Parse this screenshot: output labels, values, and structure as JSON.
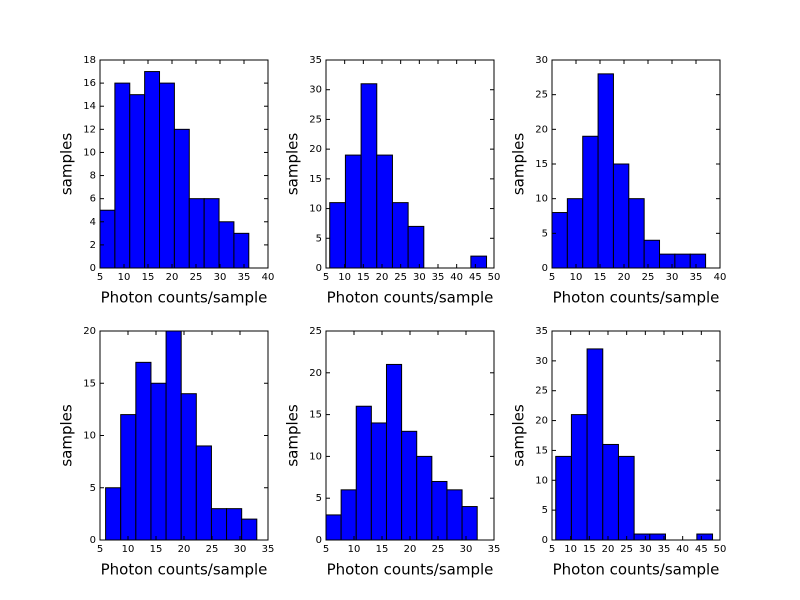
{
  "chart_data": [
    {
      "type": "histogram",
      "xlabel": "Photon counts/sample",
      "ylabel": "samples",
      "color": "#0000ff",
      "bins": [
        5,
        8.1,
        11.2,
        14.3,
        17.4,
        20.5,
        23.6,
        26.7,
        29.8,
        32.9,
        36
      ],
      "values": [
        5,
        16,
        15,
        17,
        16,
        12,
        6,
        6,
        4,
        3
      ],
      "xlim": [
        5,
        40
      ],
      "ylim": [
        0,
        18
      ],
      "xticks": [
        5,
        10,
        15,
        20,
        25,
        30,
        35,
        40
      ],
      "yticks": [
        0,
        2,
        4,
        6,
        8,
        10,
        12,
        14,
        16,
        18
      ]
    },
    {
      "type": "histogram",
      "xlabel": "Photon counts/sample",
      "ylabel": "samples",
      "color": "#0000ff",
      "bins": [
        6,
        10.2,
        14.4,
        18.6,
        22.8,
        27,
        31.2,
        35.4,
        39.6,
        43.8,
        48
      ],
      "values": [
        11,
        19,
        31,
        19,
        11,
        7,
        0,
        0,
        0,
        2
      ],
      "xlim": [
        5,
        50
      ],
      "ylim": [
        0,
        35
      ],
      "xticks": [
        5,
        10,
        15,
        20,
        25,
        30,
        35,
        40,
        45,
        50
      ],
      "yticks": [
        0,
        5,
        10,
        15,
        20,
        25,
        30,
        35
      ]
    },
    {
      "type": "histogram",
      "xlabel": "Photon counts/sample",
      "ylabel": "samples",
      "color": "#0000ff",
      "bins": [
        5,
        8.2,
        11.4,
        14.6,
        17.8,
        21,
        24.2,
        27.4,
        30.6,
        33.8,
        37
      ],
      "values": [
        8,
        10,
        19,
        28,
        15,
        10,
        4,
        2,
        2,
        2
      ],
      "xlim": [
        5,
        40
      ],
      "ylim": [
        0,
        30
      ],
      "xticks": [
        5,
        10,
        15,
        20,
        25,
        30,
        35,
        40
      ],
      "yticks": [
        0,
        5,
        10,
        15,
        20,
        25,
        30
      ]
    },
    {
      "type": "histogram",
      "xlabel": "Photon counts/sample",
      "ylabel": "samples",
      "color": "#0000ff",
      "bins": [
        6,
        8.7,
        11.4,
        14.1,
        16.8,
        19.5,
        22.2,
        24.9,
        27.6,
        30.3,
        33
      ],
      "values": [
        5,
        12,
        17,
        15,
        20,
        14,
        9,
        3,
        3,
        2
      ],
      "xlim": [
        5,
        35
      ],
      "ylim": [
        0,
        20
      ],
      "xticks": [
        5,
        10,
        15,
        20,
        25,
        30,
        35
      ],
      "yticks": [
        0,
        5,
        10,
        15,
        20
      ]
    },
    {
      "type": "histogram",
      "xlabel": "Photon counts/sample",
      "ylabel": "samples",
      "color": "#0000ff",
      "bins": [
        5,
        7.7,
        10.4,
        13.1,
        15.8,
        18.5,
        21.2,
        23.9,
        26.6,
        29.3,
        32
      ],
      "values": [
        3,
        6,
        16,
        14,
        21,
        13,
        10,
        7,
        6,
        4
      ],
      "xlim": [
        5,
        35
      ],
      "ylim": [
        0,
        25
      ],
      "xticks": [
        5,
        10,
        15,
        20,
        25,
        30,
        35
      ],
      "yticks": [
        0,
        5,
        10,
        15,
        20,
        25
      ]
    },
    {
      "type": "histogram",
      "xlabel": "Photon counts/sample",
      "ylabel": "samples",
      "color": "#0000ff",
      "bins": [
        6,
        10.2,
        14.4,
        18.6,
        22.8,
        27,
        31.2,
        35.4,
        39.6,
        43.8,
        48
      ],
      "values": [
        14,
        21,
        32,
        16,
        14,
        1,
        1,
        0,
        0,
        1
      ],
      "xlim": [
        5,
        50
      ],
      "ylim": [
        0,
        35
      ],
      "xticks": [
        5,
        10,
        15,
        20,
        25,
        30,
        35,
        40,
        45,
        50
      ],
      "yticks": [
        0,
        5,
        10,
        15,
        20,
        25,
        30,
        35
      ]
    }
  ]
}
